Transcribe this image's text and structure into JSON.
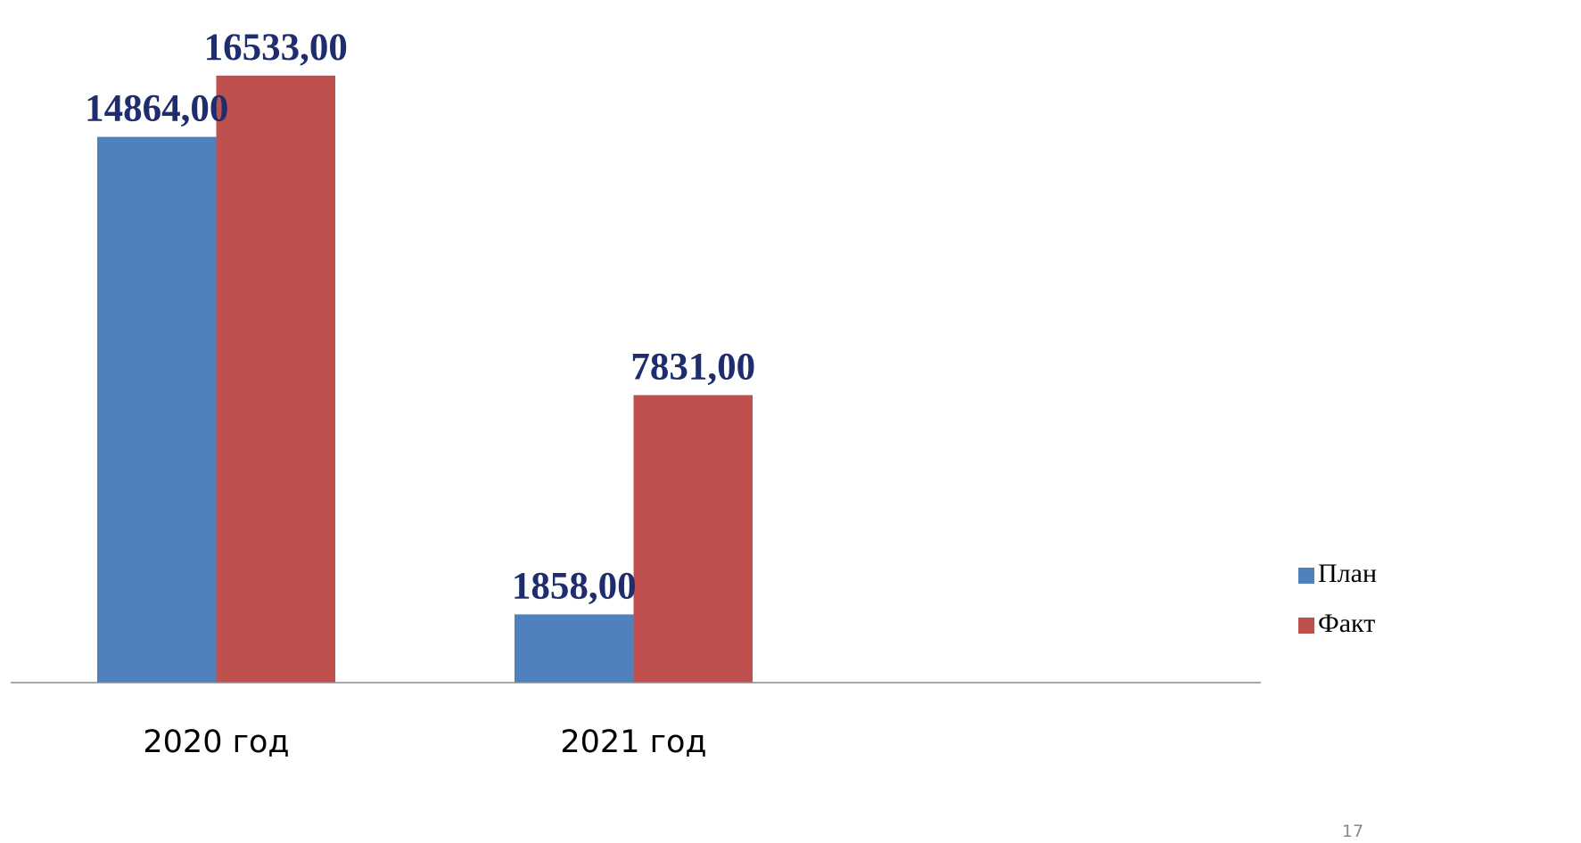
{
  "chart_data": {
    "type": "bar",
    "categories": [
      "2020 год",
      "2021 год"
    ],
    "series": [
      {
        "name": "План",
        "values": [
          14864.0,
          1858.0
        ],
        "labels": [
          "14864,00",
          "1858,00"
        ],
        "color": "#4f81bd"
      },
      {
        "name": "Факт",
        "values": [
          16533.0,
          7831.0
        ],
        "labels": [
          "16533,00",
          "7831,00"
        ],
        "color": "#c0504d"
      }
    ],
    "title": "",
    "xlabel": "",
    "ylabel": "",
    "ylim": [
      0,
      17500
    ],
    "grid": false,
    "legend_position": "right",
    "axis_line_color": "#8c8c8c",
    "data_label_color": "#1f2d6e"
  },
  "page_number": "17"
}
